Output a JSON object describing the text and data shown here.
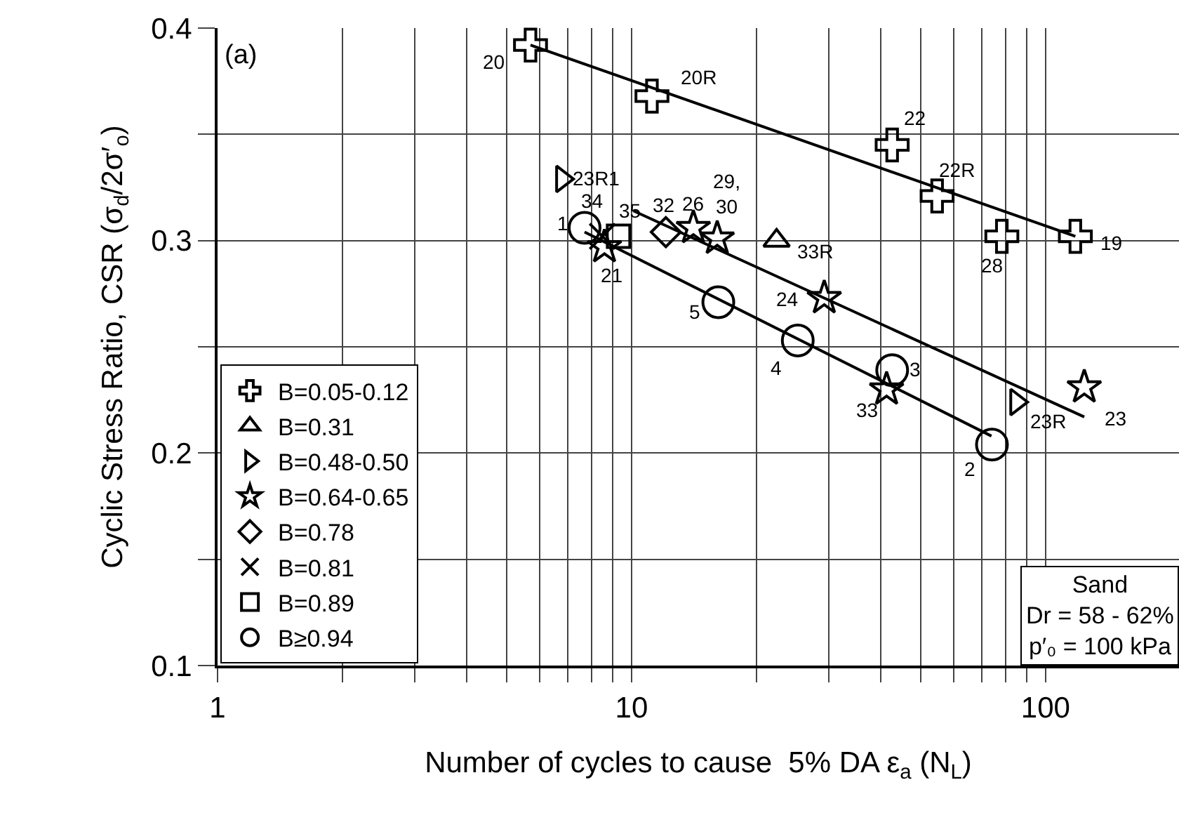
{
  "chart_data": {
    "type": "scatter",
    "xlabel": "Number of cycles to cause  5% DA ε$_{a}$ (N$_{L}$)",
    "ylabel": "Cyclic Stress Ratio, CSR (σ$_{d}$/2σ′$_{o}$)",
    "log": "x",
    "grid": true,
    "legend": "bottom left",
    "xlim": [
      1,
      210
    ],
    "ylim": [
      0.1,
      0.4
    ],
    "xticks": [
      1,
      {
        "value": 2,
        "label": null
      },
      {
        "value": 3,
        "label": null
      },
      {
        "value": 4,
        "label": null
      },
      {
        "value": 5,
        "label": null
      },
      {
        "value": 6,
        "label": null
      },
      {
        "value": 7,
        "label": null
      },
      {
        "value": 8,
        "label": null
      },
      {
        "value": 9,
        "label": null
      },
      10,
      {
        "value": 20,
        "label": null
      },
      {
        "value": 30,
        "label": null
      },
      {
        "value": 40,
        "label": null
      },
      {
        "value": 50,
        "label": null
      },
      {
        "value": 60,
        "label": null
      },
      {
        "value": 70,
        "label": null
      },
      {
        "value": 80,
        "label": null
      },
      {
        "value": 90,
        "label": null
      },
      100
    ],
    "yticks": [
      0.1,
      {
        "value": 0.15,
        "label": null
      },
      0.2,
      {
        "value": 0.25,
        "label": null
      },
      0.3,
      {
        "value": 0.35,
        "label": null
      },
      0.4
    ],
    "series": [
      {
        "name": "B=0.05-0.12",
        "marker": "plus",
        "color": "#000000",
        "x": [
          5.7,
          11.2,
          42.6,
          54.7,
          78.4,
          118
        ],
        "values": [
          0.392,
          0.368,
          0.345,
          0.321,
          0.302,
          0.302
        ]
      },
      {
        "name": "B=0.31",
        "marker": "triangle",
        "color": "#000000",
        "x": [
          22.4
        ],
        "values": [
          0.3
        ]
      },
      {
        "name": "B=0.48-0.50",
        "marker": "triangle-right",
        "color": "#000000",
        "x": [
          6.8,
          85
        ],
        "values": [
          0.329,
          0.224
        ]
      },
      {
        "name": "B=0.64-0.65",
        "marker": "star",
        "color": "#000000",
        "x": [
          8.6,
          14.1,
          16.1,
          29.2,
          41.3,
          124
        ],
        "values": [
          0.297,
          0.306,
          0.301,
          0.273,
          0.23,
          0.231
        ]
      },
      {
        "name": "B=0.78",
        "marker": "diamond",
        "color": "#000000",
        "x": [
          12.1
        ],
        "values": [
          0.304
        ]
      },
      {
        "name": "B=0.81",
        "marker": "cross",
        "color": "#000000",
        "x": [
          8.5
        ],
        "values": [
          0.302
        ]
      },
      {
        "name": "B=0.89",
        "marker": "square",
        "color": "#000000",
        "x": [
          9.3
        ],
        "values": [
          0.302
        ]
      },
      {
        "name": "B≥0.94",
        "marker": "circle",
        "color": "#000000",
        "x": [
          7.7,
          16.2,
          25.2,
          42.6,
          74.2
        ],
        "values": [
          0.306,
          0.271,
          0.253,
          0.239,
          0.204
        ]
      },
      {
        "type": "line",
        "marker": "none",
        "line_style": "solid",
        "color": "#000000",
        "x": [
          5.7,
          118
        ],
        "values": [
          0.392,
          0.302
        ]
      },
      {
        "type": "line",
        "marker": "none",
        "line_style": "solid",
        "color": "#000000",
        "x": [
          10.1,
          124
        ],
        "values": [
          0.314,
          0.217
        ]
      },
      {
        "type": "line",
        "marker": "none",
        "line_style": "solid",
        "color": "#000000",
        "x": [
          7.7,
          74
        ],
        "values": [
          0.304,
          0.208
        ]
      }
    ],
    "annotations": [
      "(a)",
      "Sand\nDr = 58 - 62%\np′₀ = 100 kPa",
      {
        "text": "20",
        "x": 5.7,
        "y": 0.392
      },
      {
        "text": "20R",
        "x": 11.2,
        "y": 0.368
      },
      {
        "text": "22",
        "x": 42.6,
        "y": 0.345
      },
      {
        "text": "22R",
        "x": 54.7,
        "y": 0.321
      },
      {
        "text": "28",
        "x": 78.4,
        "y": 0.302
      },
      {
        "text": "19",
        "x": 118,
        "y": 0.302
      },
      {
        "text": "23R1",
        "x": 6.8,
        "y": 0.329
      },
      {
        "text": "34",
        "x": 8.5,
        "y": 0.302
      },
      {
        "text": "35",
        "x": 9.3,
        "y": 0.302
      },
      {
        "text": "32",
        "x": 12.1,
        "y": 0.304
      },
      {
        "text": "26",
        "x": 14.1,
        "y": 0.306
      },
      {
        "text": "29,\n30",
        "x": 16.1,
        "y": 0.301
      },
      {
        "text": "33R",
        "x": 22.4,
        "y": 0.3
      },
      {
        "text": "21",
        "x": 8.6,
        "y": 0.297
      },
      {
        "text": "1",
        "x": 7.7,
        "y": 0.306
      },
      {
        "text": "5",
        "x": 16.2,
        "y": 0.271
      },
      {
        "text": "24",
        "x": 29.2,
        "y": 0.273
      },
      {
        "text": "4",
        "x": 25.2,
        "y": 0.253
      },
      {
        "text": "3",
        "x": 42.6,
        "y": 0.239
      },
      {
        "text": "33",
        "x": 41.3,
        "y": 0.23
      },
      {
        "text": "23R",
        "x": 85,
        "y": 0.224
      },
      {
        "text": "23",
        "x": 124,
        "y": 0.231
      },
      {
        "text": "2",
        "x": 74.2,
        "y": 0.204
      }
    ]
  }
}
